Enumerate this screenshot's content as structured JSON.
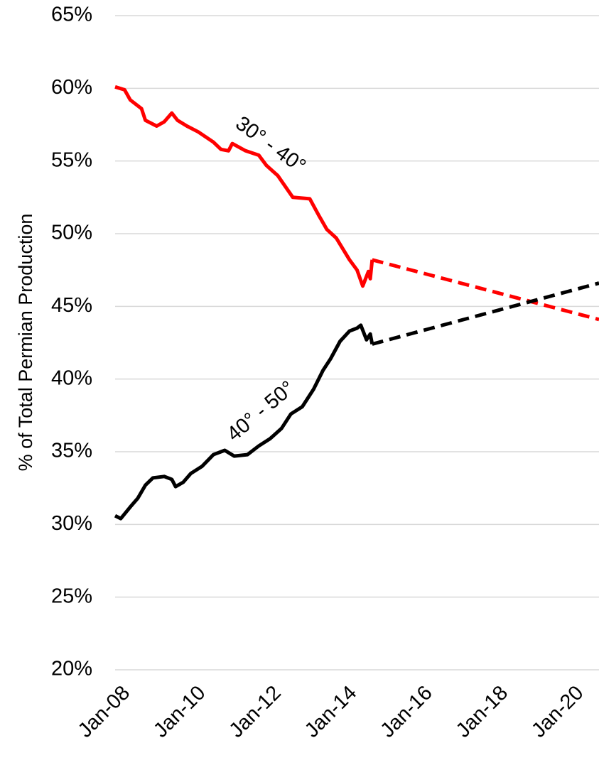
{
  "chart_data": {
    "type": "line",
    "ylabel": "% of Total Permian Production",
    "xlim": [
      2008,
      2020.8
    ],
    "xticks": [
      {
        "value": 2008,
        "label": "Jan-08"
      },
      {
        "value": 2010,
        "label": "Jan-10"
      },
      {
        "value": 2012,
        "label": "Jan-12"
      },
      {
        "value": 2014,
        "label": "Jan-14"
      },
      {
        "value": 2016,
        "label": "Jan-16"
      },
      {
        "value": 2018,
        "label": "Jan-18"
      },
      {
        "value": 2020,
        "label": "Jan-20"
      }
    ],
    "ylim": [
      20,
      65
    ],
    "yticks": [
      {
        "value": 20,
        "label": "20%"
      },
      {
        "value": 25,
        "label": "25%"
      },
      {
        "value": 30,
        "label": "30%"
      },
      {
        "value": 35,
        "label": "35%"
      },
      {
        "value": 40,
        "label": "40%"
      },
      {
        "value": 45,
        "label": "45%"
      },
      {
        "value": 50,
        "label": "50%"
      },
      {
        "value": 55,
        "label": "55%"
      },
      {
        "value": 60,
        "label": "60%"
      },
      {
        "value": 65,
        "label": "65%"
      }
    ],
    "grid": true,
    "series": [
      {
        "name": "30° - 40°",
        "color": "#ff0000",
        "style": "solid",
        "x": [
          2008.0,
          2008.25,
          2008.4,
          2008.7,
          2008.8,
          2009.1,
          2009.3,
          2009.5,
          2009.65,
          2009.9,
          2010.2,
          2010.6,
          2010.8,
          2011.0,
          2011.1,
          2011.45,
          2011.8,
          2012.0,
          2012.3,
          2012.7,
          2013.15,
          2013.4,
          2013.6,
          2013.85,
          2014.2,
          2014.4,
          2014.55,
          2014.7,
          2014.75,
          2014.8
        ],
        "values": [
          60.1,
          59.9,
          59.2,
          58.6,
          57.8,
          57.4,
          57.7,
          58.3,
          57.8,
          57.4,
          57.0,
          56.3,
          55.8,
          55.7,
          56.2,
          55.7,
          55.4,
          54.7,
          54.0,
          52.5,
          52.4,
          51.2,
          50.3,
          49.7,
          48.2,
          47.5,
          46.4,
          47.4,
          46.9,
          48.2
        ]
      },
      {
        "color": "#ff0000",
        "style": "dashed",
        "x": [
          2014.8,
          2020.8
        ],
        "values": [
          48.2,
          44.1
        ]
      },
      {
        "name": "40° - 50°",
        "color": "#000000",
        "style": "solid",
        "x": [
          2008.0,
          2008.15,
          2008.4,
          2008.6,
          2008.8,
          2009.0,
          2009.3,
          2009.5,
          2009.6,
          2009.8,
          2010.0,
          2010.3,
          2010.6,
          2010.9,
          2011.15,
          2011.5,
          2011.8,
          2012.1,
          2012.4,
          2012.65,
          2012.95,
          2013.25,
          2013.5,
          2013.7,
          2013.95,
          2014.2,
          2014.4,
          2014.5,
          2014.65,
          2014.75,
          2014.8
        ],
        "values": [
          30.6,
          30.4,
          31.2,
          31.8,
          32.7,
          33.2,
          33.3,
          33.1,
          32.6,
          32.9,
          33.5,
          34.0,
          34.8,
          35.1,
          34.7,
          34.8,
          35.4,
          35.9,
          36.6,
          37.6,
          38.1,
          39.3,
          40.6,
          41.4,
          42.6,
          43.3,
          43.5,
          43.7,
          42.7,
          43.1,
          42.4
        ]
      },
      {
        "color": "#000000",
        "style": "dashed",
        "x": [
          2014.8,
          2020.8
        ],
        "values": [
          42.4,
          46.6
        ]
      }
    ]
  }
}
